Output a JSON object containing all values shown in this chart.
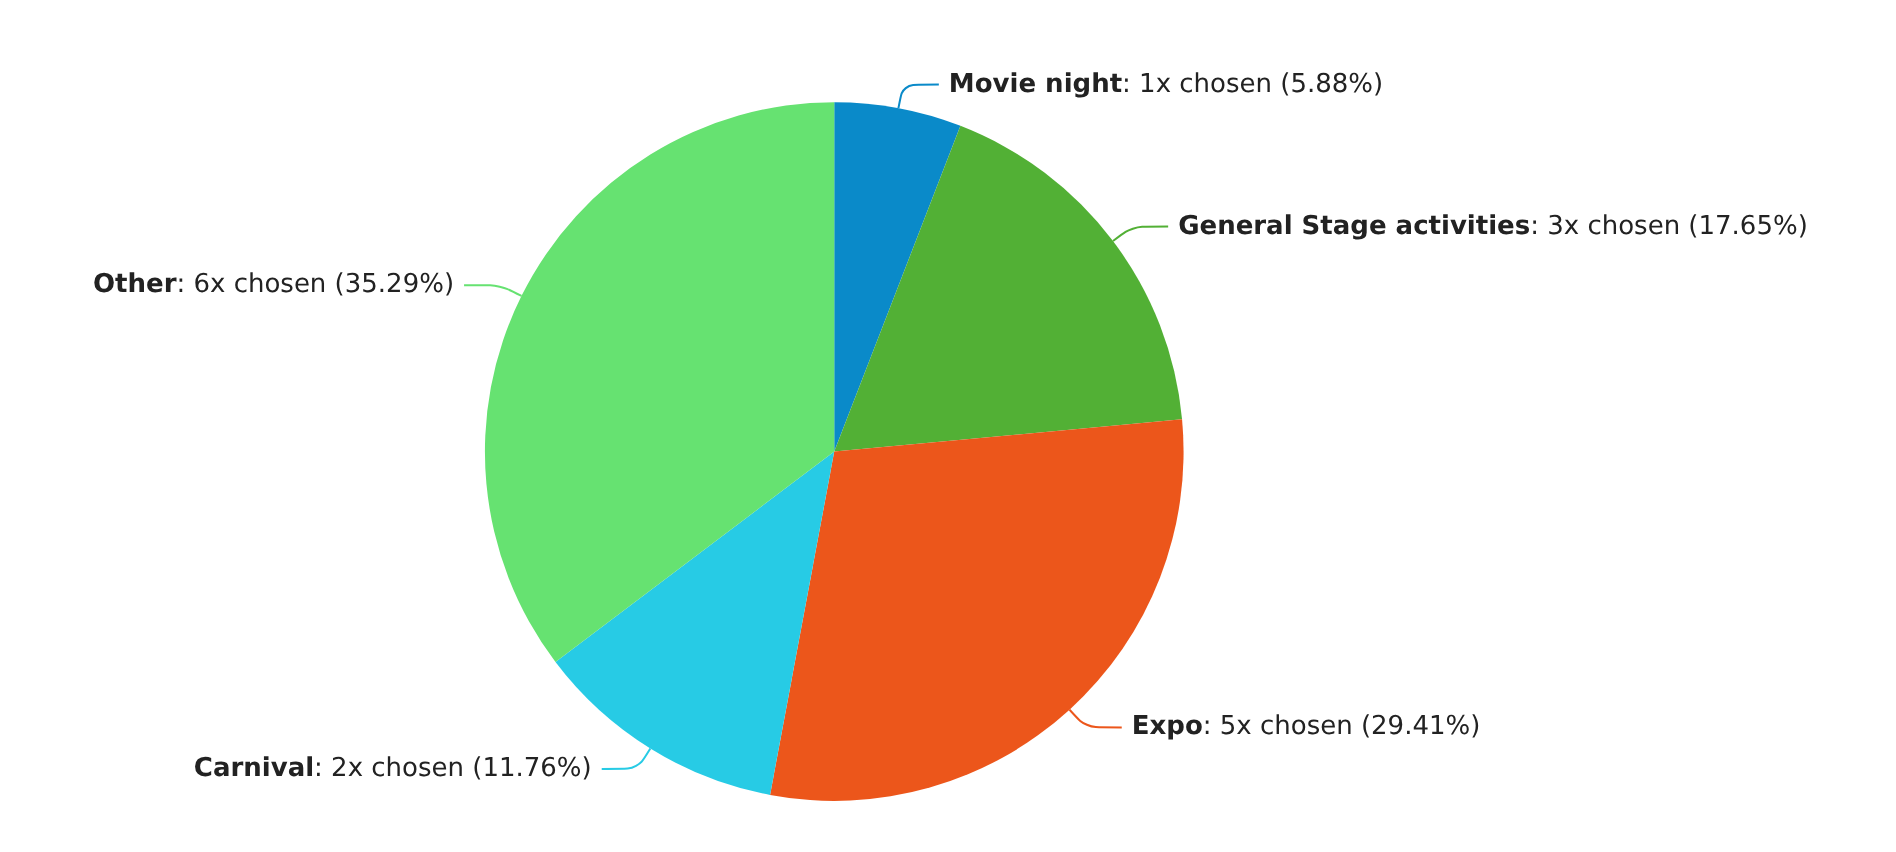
{
  "chart_data": {
    "type": "pie",
    "categories": [
      "Movie night",
      "General Stage activities",
      "Expo",
      "Carnival",
      "Other"
    ],
    "values": [
      1,
      3,
      5,
      2,
      6
    ],
    "value_labels": [
      ": 1x chosen (5.88%)",
      ": 3x chosen (17.65%)",
      ": 5x chosen (29.41%)",
      ": 2x chosen (11.76%)",
      ": 6x chosen (35.29%)"
    ],
    "colors": [
      "#0a8ac9",
      "#52b035",
      "#ec561b",
      "#27cbe5",
      "#66e271"
    ],
    "legend": false
  }
}
